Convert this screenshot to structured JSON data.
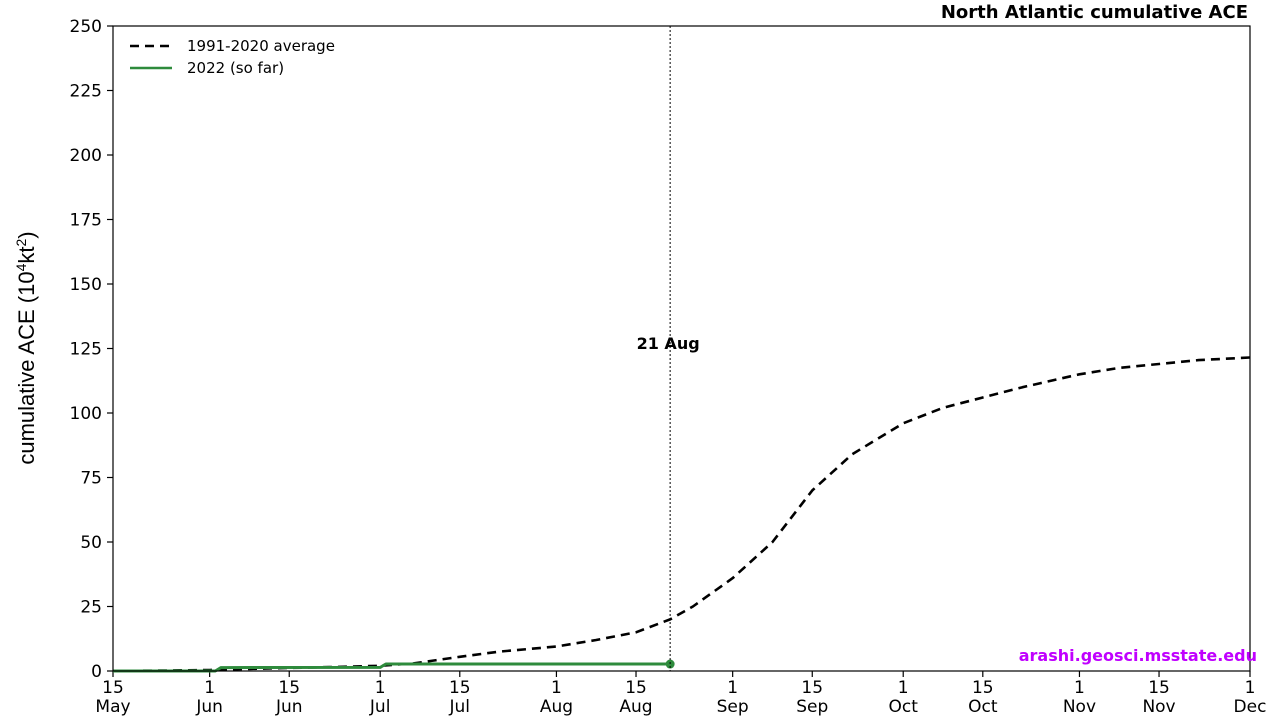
{
  "chart_data": {
    "type": "line",
    "title": "North Atlantic cumulative ACE",
    "ylabel": "cumulative ACE (10",
    "ylabel_sup1": "4",
    "ylabel_mid": "kt",
    "ylabel_sup2": "2",
    "ylabel_end": ")",
    "ylim": [
      0,
      250
    ],
    "yticks": [
      0,
      25,
      50,
      75,
      100,
      125,
      150,
      175,
      200,
      225,
      250
    ],
    "xlim": [
      "2022-05-15",
      "2022-12-01"
    ],
    "xticks": [
      {
        "date": "2022-05-15",
        "line1": "15",
        "line2": "May"
      },
      {
        "date": "2022-06-01",
        "line1": "1",
        "line2": "Jun"
      },
      {
        "date": "2022-06-15",
        "line1": "15",
        "line2": "Jun"
      },
      {
        "date": "2022-07-01",
        "line1": "1",
        "line2": "Jul"
      },
      {
        "date": "2022-07-15",
        "line1": "15",
        "line2": "Jul"
      },
      {
        "date": "2022-08-01",
        "line1": "1",
        "line2": "Aug"
      },
      {
        "date": "2022-08-15",
        "line1": "15",
        "line2": "Aug"
      },
      {
        "date": "2022-09-01",
        "line1": "1",
        "line2": "Sep"
      },
      {
        "date": "2022-09-15",
        "line1": "15",
        "line2": "Sep"
      },
      {
        "date": "2022-10-01",
        "line1": "1",
        "line2": "Oct"
      },
      {
        "date": "2022-10-15",
        "line1": "15",
        "line2": "Oct"
      },
      {
        "date": "2022-11-01",
        "line1": "1",
        "line2": "Nov"
      },
      {
        "date": "2022-11-15",
        "line1": "15",
        "line2": "Nov"
      },
      {
        "date": "2022-12-01",
        "line1": "1",
        "line2": "Dec"
      }
    ],
    "legend_position": "top-left",
    "grid": false,
    "series": [
      {
        "name": "1991-2020 average",
        "color": "#000000",
        "style": "dashed",
        "points": [
          [
            "2022-05-15",
            0
          ],
          [
            "2022-05-25",
            0.2
          ],
          [
            "2022-06-01",
            0.4
          ],
          [
            "2022-06-08",
            0.8
          ],
          [
            "2022-06-15",
            1.2
          ],
          [
            "2022-06-22",
            1.5
          ],
          [
            "2022-07-01",
            2.0
          ],
          [
            "2022-07-07",
            3.0
          ],
          [
            "2022-07-15",
            5.5
          ],
          [
            "2022-07-22",
            7.5
          ],
          [
            "2022-08-01",
            9.5
          ],
          [
            "2022-08-08",
            12.0
          ],
          [
            "2022-08-15",
            15.0
          ],
          [
            "2022-08-21",
            20.0
          ],
          [
            "2022-08-25",
            25.0
          ],
          [
            "2022-09-01",
            36.0
          ],
          [
            "2022-09-08",
            50.0
          ],
          [
            "2022-09-15",
            70.0
          ],
          [
            "2022-09-22",
            84.0
          ],
          [
            "2022-10-01",
            96.0
          ],
          [
            "2022-10-08",
            102.0
          ],
          [
            "2022-10-15",
            106.0
          ],
          [
            "2022-10-22",
            110.0
          ],
          [
            "2022-11-01",
            115.0
          ],
          [
            "2022-11-08",
            117.5
          ],
          [
            "2022-11-15",
            119.0
          ],
          [
            "2022-11-22",
            120.5
          ],
          [
            "2022-12-01",
            121.5
          ]
        ]
      },
      {
        "name": "2022 (so far)",
        "color": "#2e8b3c",
        "style": "solid",
        "points": [
          [
            "2022-05-15",
            0
          ],
          [
            "2022-06-02",
            0
          ],
          [
            "2022-06-03",
            1.3
          ],
          [
            "2022-07-01",
            1.4
          ],
          [
            "2022-07-02",
            2.7
          ],
          [
            "2022-08-21",
            2.7
          ]
        ]
      }
    ],
    "marker_line": {
      "date": "2022-08-21",
      "label": "21 Aug"
    },
    "credit": {
      "text": "arashi.geosci.msstate.edu",
      "color": "#c000ff"
    }
  }
}
